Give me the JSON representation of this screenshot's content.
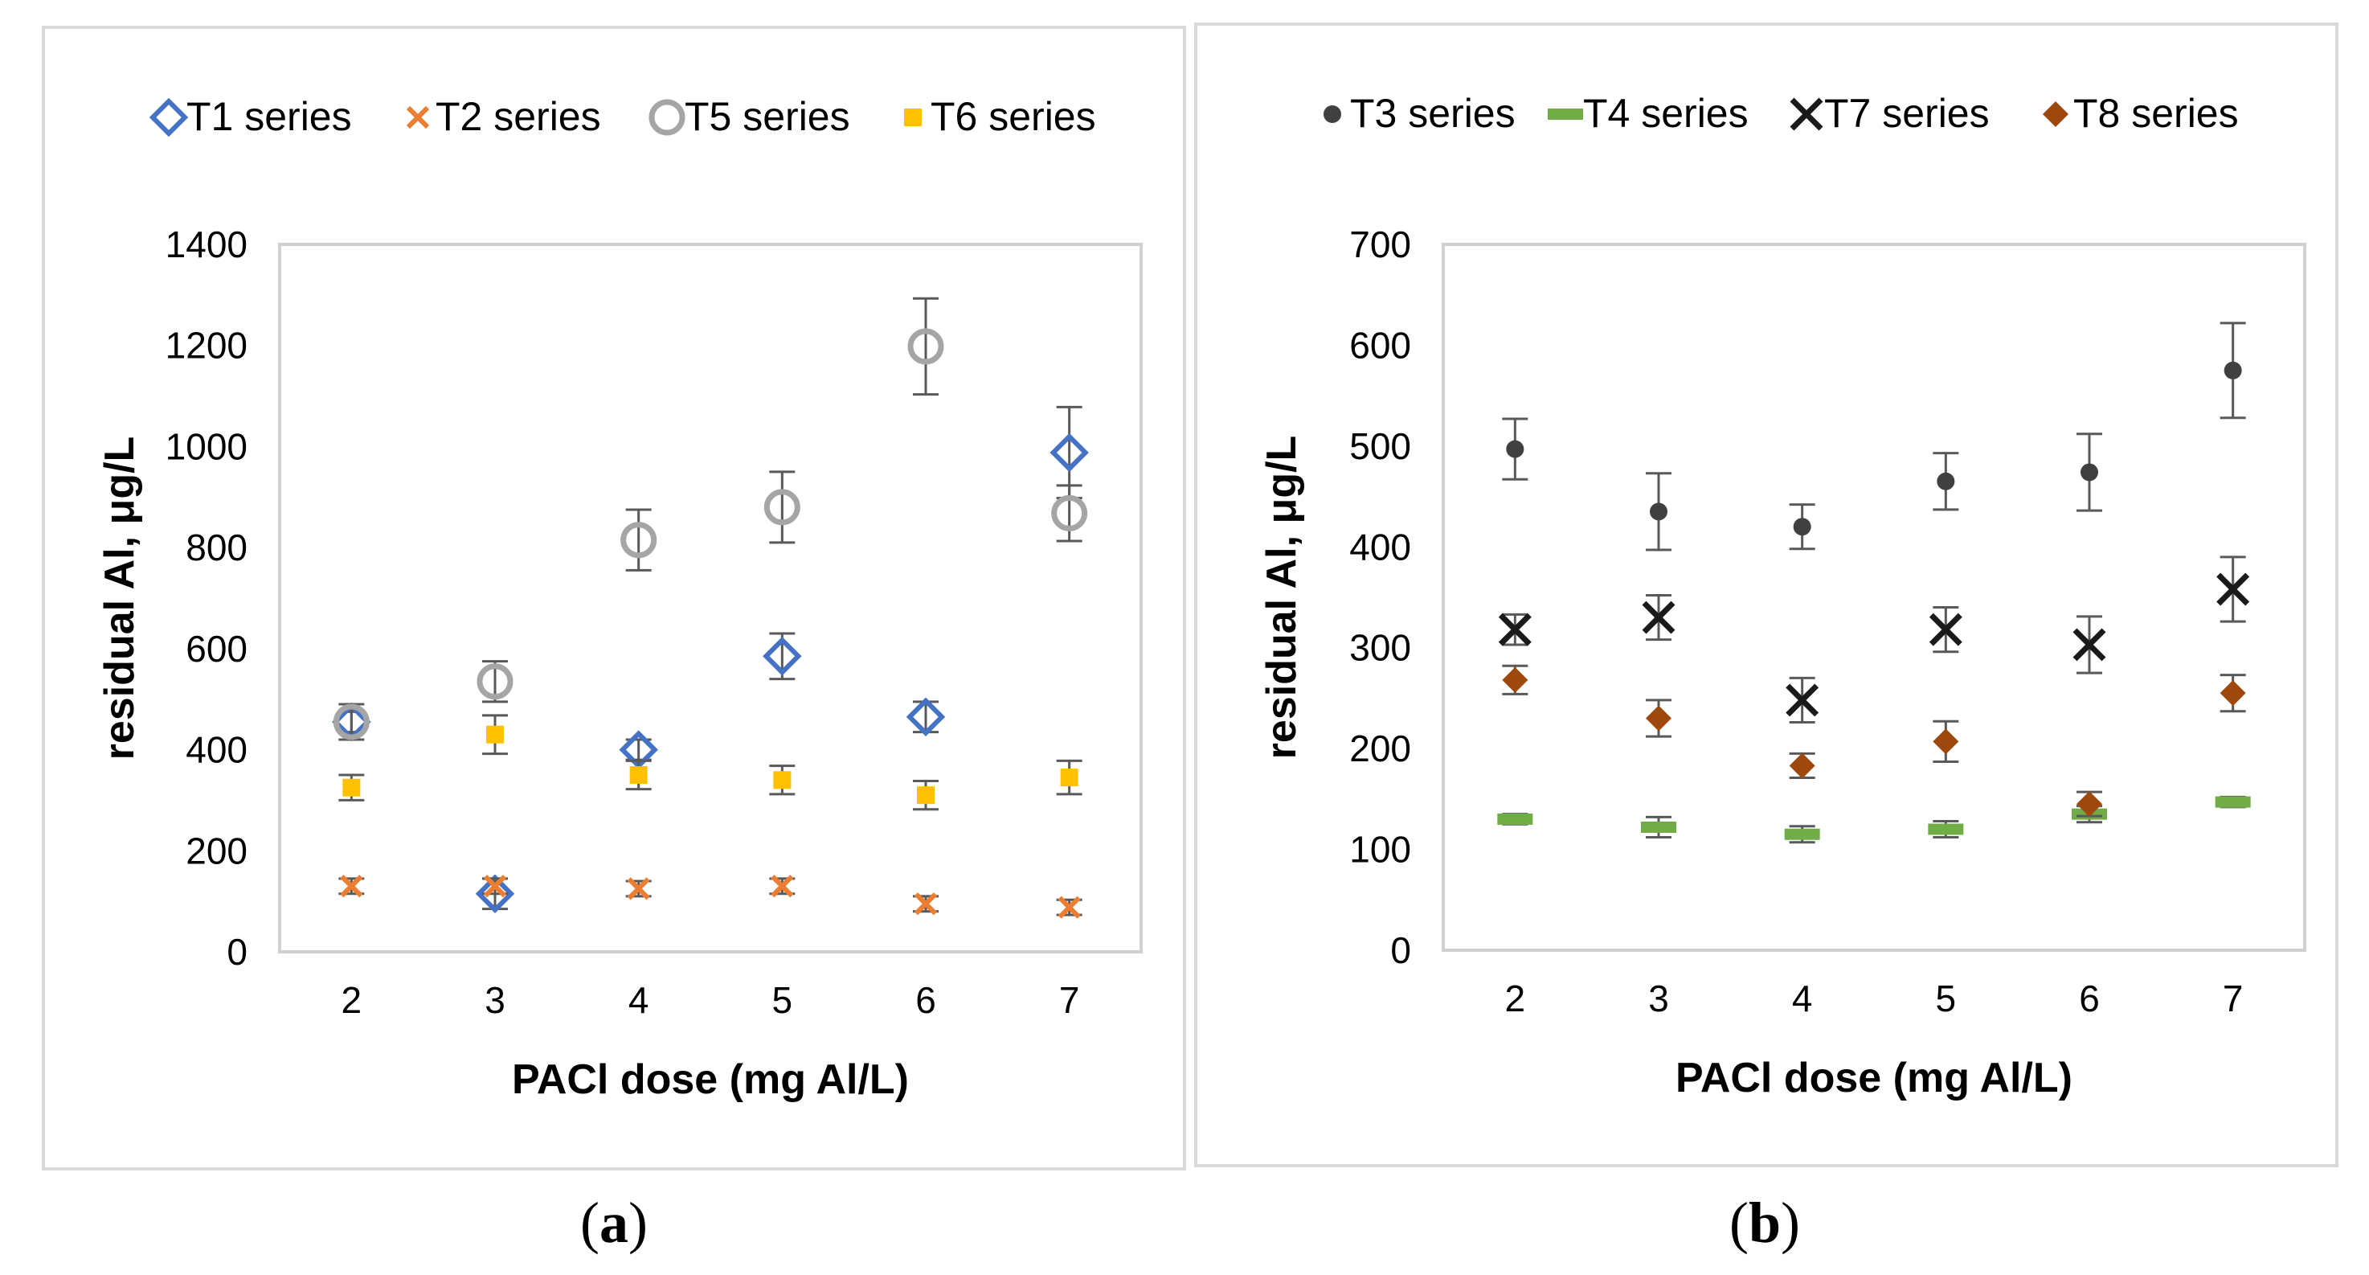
{
  "panels": [
    {
      "id": "a",
      "caption": "(a)",
      "caption_letter": "a"
    },
    {
      "id": "b",
      "caption": "(b)",
      "caption_letter": "b"
    }
  ],
  "chart_data": [
    {
      "type": "scatter",
      "panel": "a",
      "title": "",
      "xlabel": "PACl dose (mg Al/L)",
      "ylabel": "residual Al, μg/L",
      "x": [
        2,
        3,
        4,
        5,
        6,
        7
      ],
      "xlim": [
        1.5,
        7.5
      ],
      "ylim": [
        0,
        1400
      ],
      "yticks": [
        0,
        200,
        400,
        600,
        800,
        1000,
        1200,
        1400
      ],
      "legend_position": "top",
      "grid": false,
      "series": [
        {
          "name": "T1 series",
          "marker": "diamond-open",
          "color": "#4472c4",
          "values": [
            455,
            115,
            400,
            585,
            465,
            988
          ],
          "errors": [
            20,
            30,
            20,
            45,
            30,
            90
          ]
        },
        {
          "name": "T2 series",
          "marker": "x",
          "color": "#ed7d31",
          "values": [
            130,
            130,
            125,
            130,
            95,
            88
          ],
          "errors": [
            15,
            15,
            15,
            15,
            15,
            15
          ]
        },
        {
          "name": "T5 series",
          "marker": "circle-open",
          "color": "#a5a5a5",
          "values": [
            455,
            535,
            815,
            880,
            1198,
            868
          ],
          "errors": [
            35,
            40,
            60,
            70,
            95,
            55
          ]
        },
        {
          "name": "T6 series",
          "marker": "square",
          "color": "#ffc000",
          "values": [
            325,
            430,
            350,
            340,
            310,
            345
          ],
          "errors": [
            25,
            38,
            28,
            28,
            28,
            33
          ]
        }
      ]
    },
    {
      "type": "scatter",
      "panel": "b",
      "title": "",
      "xlabel": "PACl dose (mg Al/L)",
      "ylabel": "residual Al, μg/L",
      "x": [
        2,
        3,
        4,
        5,
        6,
        7
      ],
      "xlim": [
        1.5,
        7.5
      ],
      "ylim": [
        0,
        700
      ],
      "yticks": [
        0,
        100,
        200,
        300,
        400,
        500,
        600,
        700
      ],
      "legend_position": "top",
      "grid": false,
      "series": [
        {
          "name": "T3 series",
          "marker": "circle",
          "color": "#404040",
          "values": [
            497,
            435,
            420,
            465,
            474,
            575
          ],
          "errors": [
            30,
            38,
            22,
            28,
            38,
            47
          ]
        },
        {
          "name": "T4 series",
          "marker": "dash",
          "color": "#70ad47",
          "values": [
            130,
            122,
            115,
            120,
            135,
            147
          ],
          "errors": [
            5,
            10,
            8,
            8,
            8,
            5
          ]
        },
        {
          "name": "T7 series",
          "marker": "x-bold",
          "color": "#1a1a1a",
          "values": [
            318,
            330,
            248,
            318,
            303,
            358
          ],
          "errors": [
            15,
            22,
            22,
            22,
            28,
            32
          ]
        },
        {
          "name": "T8 series",
          "marker": "diamond",
          "color": "#9e480e",
          "values": [
            268,
            230,
            183,
            207,
            145,
            255
          ],
          "errors": [
            14,
            18,
            12,
            20,
            12,
            18
          ]
        }
      ]
    }
  ]
}
